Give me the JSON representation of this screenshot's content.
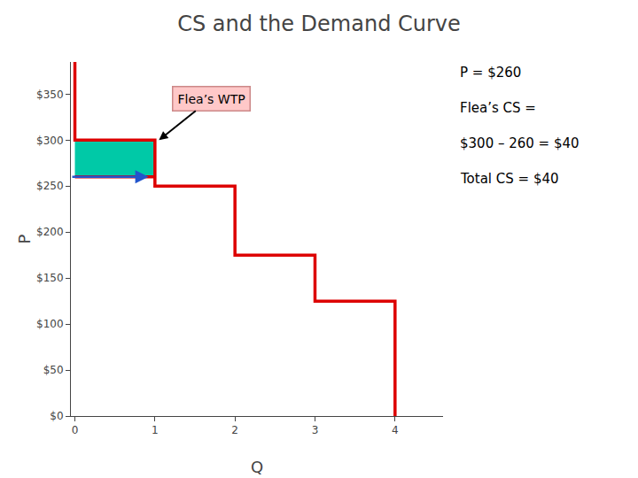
{
  "chart_data": {
    "type": "line",
    "title": "CS and the Demand Curve",
    "x_label": "Q",
    "y_label": "P",
    "xlim": [
      -0.05,
      4.6
    ],
    "xticks": [
      0,
      1,
      2,
      3,
      4
    ],
    "ylim": [
      0,
      385
    ],
    "yticks": [
      {
        "value": 0,
        "label": "$0"
      },
      {
        "value": 50,
        "label": "$50"
      },
      {
        "value": 100,
        "label": "$100"
      },
      {
        "value": 150,
        "label": "$150"
      },
      {
        "value": 200,
        "label": "$200"
      },
      {
        "value": 250,
        "label": "$250"
      },
      {
        "value": 300,
        "label": "$300"
      },
      {
        "value": 350,
        "label": "$350"
      }
    ],
    "grid": false,
    "series": [
      {
        "x": [
          0,
          0,
          1,
          1,
          2,
          2,
          3,
          3,
          4,
          4
        ],
        "values": [
          385,
          300,
          300,
          250,
          250,
          175,
          175,
          125,
          125,
          0
        ],
        "color": "#dd0000"
      },
      {
        "x": [
          0,
          1
        ],
        "values": [
          260,
          260
        ],
        "color": "#dd0000"
      }
    ],
    "regions": [
      {
        "x": [
          0,
          1
        ],
        "y": [
          260,
          300
        ],
        "color": "#00c9a7"
      }
    ],
    "arrows": [
      {
        "x": [
          -0.05,
          0.92
        ],
        "y": 260,
        "color": "#2255cc"
      }
    ],
    "annotations": [
      {
        "text": "Flea’s WTP",
        "x": 1.05,
        "y": 300,
        "text_x": 1.7,
        "text_y": 345,
        "color": "#ffc8c8"
      }
    ],
    "notes": [
      "P = $260",
      "Flea’s CS =",
      "$300 – 260 = $40",
      "Total CS = $40"
    ]
  }
}
